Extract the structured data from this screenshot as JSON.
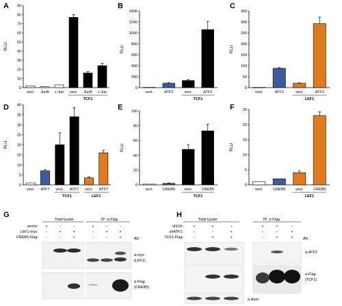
{
  "figure": {
    "panel_letters": [
      "A",
      "B",
      "C",
      "D",
      "E",
      "F",
      "G",
      "H"
    ],
    "y_axis_label": "RLU"
  },
  "colors": {
    "black": "#000000",
    "white": "#ffffff",
    "gray_bar": "#d8d8d8",
    "blue": "#3c5b9a",
    "orange": "#e07a20"
  },
  "chart_data": [
    {
      "panel": "A",
      "type": "bar",
      "categories": [
        "vect.",
        "JunB",
        "c-Jun",
        "vect.",
        "JunB",
        "c-Jun"
      ],
      "values": [
        2,
        1,
        3,
        77,
        16,
        24
      ],
      "errors": [
        0,
        0,
        0,
        3,
        1.5,
        2.5
      ],
      "colors": [
        "white",
        "white",
        "white",
        "black",
        "black",
        "black"
      ],
      "group_label": "TCF1",
      "group_start": 3,
      "group_end": 5,
      "ylabel": "RLU",
      "ylim": [
        0,
        90
      ],
      "yticks": [
        0,
        10,
        20,
        30,
        40,
        50,
        60,
        70,
        80,
        90
      ]
    },
    {
      "panel": "B",
      "type": "bar",
      "categories": [
        "vect.",
        "ATF2",
        "vect.",
        "ATF2"
      ],
      "values": [
        5,
        80,
        130,
        1060
      ],
      "errors": [
        0,
        10,
        15,
        150
      ],
      "colors": [
        "white",
        "blue",
        "black",
        "black"
      ],
      "group_label": "TCF1",
      "group_start": 2,
      "group_end": 3,
      "ylabel": "RLU",
      "ylim": [
        0,
        1400
      ],
      "yticks": [
        0,
        200,
        400,
        600,
        800,
        1000,
        1200,
        1400
      ]
    },
    {
      "panel": "C",
      "type": "bar",
      "categories": [
        "vect.",
        "ATF2",
        "vect.",
        "ATF2"
      ],
      "values": [
        1,
        88,
        20,
        292
      ],
      "errors": [
        0,
        3,
        2,
        30
      ],
      "colors": [
        "white",
        "blue",
        "orange",
        "orange"
      ],
      "group_label": "LEF1",
      "group_start": 2,
      "group_end": 3,
      "ylabel": "RLU",
      "ylim": [
        0,
        350
      ],
      "yticks": [
        0,
        50,
        100,
        150,
        200,
        250,
        300,
        350
      ]
    },
    {
      "panel": "D",
      "type": "bar",
      "categories": [
        "vect.",
        "ATF7",
        "vect.",
        "ATF7",
        "vect.",
        "ATF7"
      ],
      "values": [
        1,
        7,
        20,
        34,
        3.5,
        16
      ],
      "errors": [
        0,
        0.6,
        6,
        4.5,
        0.4,
        1.2
      ],
      "colors": [
        "white",
        "blue",
        "black",
        "black",
        "orange",
        "orange"
      ],
      "group_labels": [
        {
          "label": "TCF1",
          "start": 2,
          "end": 3
        },
        {
          "label": "LEF1",
          "start": 4,
          "end": 5
        }
      ],
      "ylabel": "RLU",
      "ylim": [
        0,
        40
      ],
      "yticks": [
        0,
        5,
        10,
        15,
        20,
        25,
        30,
        35,
        40
      ]
    },
    {
      "panel": "E",
      "type": "bar",
      "categories": [
        "vect.",
        "CREB5",
        "vect.",
        "CREB5"
      ],
      "values": [
        1,
        2,
        48,
        73
      ],
      "errors": [
        0,
        0.5,
        6,
        9
      ],
      "colors": [
        "white",
        "blue",
        "black",
        "black"
      ],
      "group_label": "TCF1",
      "group_start": 2,
      "group_end": 3,
      "ylabel": "RLU",
      "ylim": [
        0,
        100
      ],
      "yticks": [
        0,
        20,
        40,
        60,
        80,
        100
      ]
    },
    {
      "panel": "F",
      "type": "bar",
      "categories": [
        "vect.",
        "CREB5",
        "vect.",
        "CREB5"
      ],
      "values": [
        1,
        2,
        4,
        23
      ],
      "errors": [
        0,
        0,
        0.6,
        1.2
      ],
      "colors": [
        "white",
        "blue",
        "orange",
        "orange"
      ],
      "group_label": "LEF1",
      "group_start": 2,
      "group_end": 3,
      "ylabel": "RLU",
      "ylim": [
        0,
        25
      ],
      "yticks": [
        0,
        5,
        10,
        15,
        20,
        25
      ]
    }
  ],
  "blot_g": {
    "header_total": "Total lysate",
    "header_ip": "IP: α-Flag",
    "ab_label": "Ab:",
    "rows": [
      {
        "label": "vector:",
        "signs": [
          "+",
          "-",
          "-",
          "+",
          "-",
          "-"
        ]
      },
      {
        "label": "LEF1-myc:",
        "signs": [
          "-",
          "+",
          "+",
          "-",
          "+",
          "+"
        ]
      },
      {
        "label": "CREB5-Flag:",
        "signs": [
          "-",
          "-",
          "+",
          "-",
          "-",
          "+"
        ]
      }
    ],
    "band_labels": [
      "α-myc",
      "(LEF1)",
      "α-Flag",
      "(CREB5)"
    ]
  },
  "blot_h": {
    "header_total": "Total lysate",
    "header_ip": "IP: α-Flag",
    "ab_label": "Ab:",
    "rows": [
      {
        "label": "shCtrl:",
        "signs": [
          "+",
          "+",
          "-",
          "+",
          "+",
          "-"
        ]
      },
      {
        "label": "shATF2:",
        "signs": [
          "-",
          "-",
          "+",
          "-",
          "-",
          "+"
        ]
      },
      {
        "label": "TCF1-Flag:",
        "signs": [
          "-",
          "+",
          "+",
          "-",
          "+",
          "+"
        ]
      }
    ],
    "band_labels": [
      "α-ATF2",
      "α-Flag",
      "(TCF1)",
      "α-Axin"
    ]
  }
}
